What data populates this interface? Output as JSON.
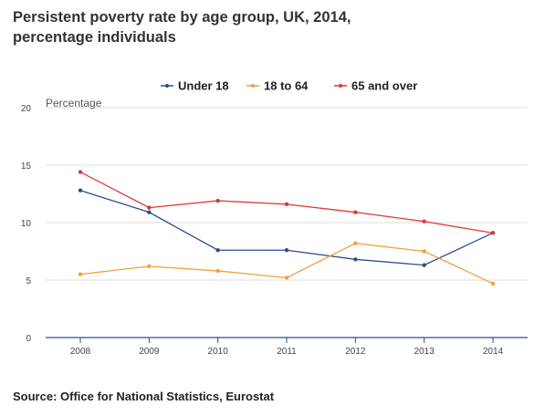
{
  "title_line1": "Persistent poverty rate by age group, UK, 2014,",
  "title_line2": "percentage individuals",
  "source": "Source: Office for National Statistics, Eurostat",
  "chart_data": {
    "type": "line",
    "title": "Persistent poverty rate by age group, UK, 2014, percentage individuals",
    "ylabel": "Percentage",
    "xlabel": "",
    "ylim": [
      0,
      20
    ],
    "yticks": [
      0,
      5,
      10,
      15,
      20
    ],
    "x": [
      "2008",
      "2009",
      "2010",
      "2011",
      "2012",
      "2013",
      "2014"
    ],
    "grid": true,
    "legend_position": "top",
    "series": [
      {
        "name": "Under 18",
        "color": "#2d4d8f",
        "values": [
          12.8,
          10.9,
          7.6,
          7.6,
          6.8,
          6.3,
          9.1
        ]
      },
      {
        "name": "18 to 64",
        "color": "#f0a03c",
        "values": [
          5.5,
          6.2,
          5.8,
          5.2,
          8.2,
          7.5,
          4.7
        ]
      },
      {
        "name": "65 and over",
        "color": "#e0363a",
        "values": [
          14.4,
          11.3,
          11.9,
          11.6,
          10.9,
          10.1,
          9.1
        ]
      }
    ]
  }
}
